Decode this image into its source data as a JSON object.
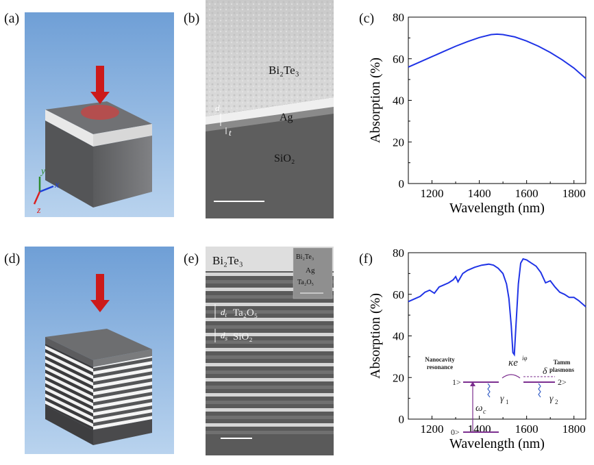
{
  "panels": {
    "a": "(a)",
    "b": "(b)",
    "c": "(c)",
    "d": "(d)",
    "e": "(e)",
    "f": "(f)"
  },
  "sem_b": {
    "bi2te3": "Bi₂Te₃",
    "ag": "Ag",
    "sio2": "SiO₂",
    "d": "d",
    "t": "t"
  },
  "sem_e": {
    "bi2te3": "Bi₂Te₃",
    "ta2o5": "Ta₂O₅",
    "sio2": "SiO₂",
    "dt": "d",
    "dt_sub": "t",
    "ds": "d",
    "ds_sub": "s",
    "inset_bi2te3": "Bi₂Te₃",
    "inset_ag": "Ag",
    "inset_ta2o5": "Ta₂O₅"
  },
  "axes_labels": {
    "c_panel": "(c)",
    "f_panel": "(f)"
  },
  "colors": {
    "curve": "#1f33e6",
    "sky": "#8bb4e0",
    "block": "#6d6e70",
    "arrow": "#d61f1f",
    "level": "#7b2d8e"
  },
  "inset_f": {
    "nano": "Nanocavity",
    "resonance": "resonance",
    "tamm": "Tamm",
    "plasmons": "plasmons",
    "one": "1>",
    "two": "2>",
    "zero": "0>",
    "omega": "ω",
    "omega_sub": "c",
    "gamma1": "γ",
    "gamma1_sub": "1",
    "gamma2": "γ",
    "gamma2_sub": "2",
    "delta": "δ",
    "kappa": "κe",
    "kappa_sup": "iφ"
  },
  "chart_data": [
    {
      "type": "line",
      "xlabel": "Wavelength (nm)",
      "ylabel": "Absorption (%)",
      "xlim": [
        1100,
        1850
      ],
      "ylim": [
        0,
        80
      ],
      "xticks": [
        1200,
        1400,
        1600,
        1800
      ],
      "yticks": [
        0,
        20,
        40,
        60,
        80
      ],
      "series": [
        {
          "x": [
            1100,
            1150,
            1200,
            1250,
            1300,
            1350,
            1400,
            1450,
            1475,
            1500,
            1550,
            1600,
            1650,
            1700,
            1750,
            1800,
            1850
          ],
          "values": [
            56,
            58.5,
            61,
            63.5,
            66,
            68.2,
            70.2,
            71.6,
            71.8,
            71.6,
            70.5,
            68.5,
            66,
            63,
            59.5,
            55.5,
            50.5
          ]
        }
      ]
    },
    {
      "type": "line",
      "xlabel": "Wavelength (nm)",
      "ylabel": "Absorption (%)",
      "xlim": [
        1100,
        1850
      ],
      "ylim": [
        0,
        80
      ],
      "xticks": [
        1200,
        1400,
        1600,
        1800
      ],
      "yticks": [
        0,
        20,
        40,
        60,
        80
      ],
      "series": [
        {
          "x": [
            1100,
            1130,
            1150,
            1170,
            1190,
            1210,
            1230,
            1250,
            1270,
            1290,
            1300,
            1310,
            1330,
            1350,
            1380,
            1410,
            1440,
            1460,
            1480,
            1500,
            1515,
            1525,
            1535,
            1542,
            1548,
            1555,
            1565,
            1575,
            1585,
            1600,
            1620,
            1640,
            1660,
            1680,
            1700,
            1720,
            1740,
            1760,
            1780,
            1800,
            1820,
            1850
          ],
          "values": [
            56.5,
            58,
            59,
            61,
            62,
            60.5,
            63.5,
            64.5,
            65.5,
            67,
            68.5,
            66,
            70,
            71.5,
            73,
            74,
            74.5,
            74,
            72.5,
            70,
            65,
            58,
            45,
            32,
            31,
            45,
            65,
            75,
            77,
            76.5,
            75,
            73.5,
            70.5,
            65.5,
            66.5,
            63.5,
            61,
            60,
            58.5,
            58.5,
            57,
            54
          ]
        }
      ]
    }
  ]
}
